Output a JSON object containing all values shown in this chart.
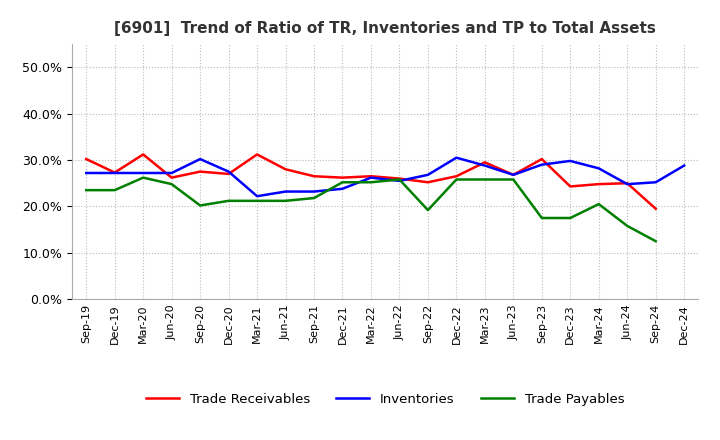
{
  "title": "[6901]  Trend of Ratio of TR, Inventories and TP to Total Assets",
  "x_labels": [
    "Sep-19",
    "Dec-19",
    "Mar-20",
    "Jun-20",
    "Sep-20",
    "Dec-20",
    "Mar-21",
    "Jun-21",
    "Sep-21",
    "Dec-21",
    "Mar-22",
    "Jun-22",
    "Sep-22",
    "Dec-22",
    "Mar-23",
    "Jun-23",
    "Sep-23",
    "Dec-23",
    "Mar-24",
    "Jun-24",
    "Sep-24",
    "Dec-24"
  ],
  "trade_receivables": [
    0.302,
    0.273,
    0.312,
    0.262,
    0.275,
    0.27,
    0.312,
    0.28,
    0.265,
    0.262,
    0.265,
    0.26,
    0.252,
    0.265,
    0.295,
    0.268,
    0.302,
    0.243,
    0.248,
    0.25,
    0.195,
    null
  ],
  "inventories": [
    0.272,
    0.272,
    0.272,
    0.272,
    0.302,
    0.275,
    0.222,
    0.232,
    0.232,
    0.238,
    0.262,
    0.255,
    0.268,
    0.305,
    0.288,
    0.268,
    0.29,
    0.298,
    0.282,
    0.248,
    0.252,
    0.288
  ],
  "trade_payables": [
    0.235,
    0.235,
    0.262,
    0.248,
    0.202,
    0.212,
    0.212,
    0.212,
    0.218,
    0.252,
    0.252,
    0.258,
    0.192,
    0.258,
    0.258,
    0.258,
    0.175,
    0.175,
    0.205,
    0.158,
    0.125,
    null
  ],
  "ylim": [
    0.0,
    0.55
  ],
  "yticks": [
    0.0,
    0.1,
    0.2,
    0.3,
    0.4,
    0.5
  ],
  "line_colors": {
    "trade_receivables": "#FF0000",
    "inventories": "#0000FF",
    "trade_payables": "#008000"
  },
  "legend_labels": [
    "Trade Receivables",
    "Inventories",
    "Trade Payables"
  ],
  "background_color": "#ffffff",
  "grid_color": "#bbbbbb"
}
